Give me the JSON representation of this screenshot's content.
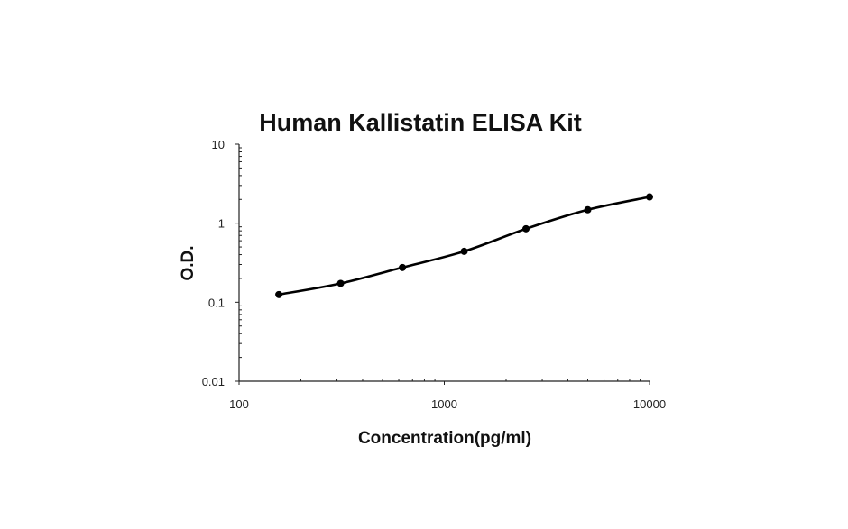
{
  "chart_data": {
    "type": "scatter",
    "title": "Human Kallistatin ELISA Kit",
    "xlabel": "Concentration(pg/ml)",
    "ylabel": "O.D.",
    "x_scale": "log",
    "y_scale": "log",
    "xlim": [
      100,
      10000
    ],
    "ylim": [
      0.01,
      10
    ],
    "x_ticks": [
      100,
      1000,
      10000
    ],
    "x_tick_labels": [
      "100",
      "1000",
      "10000"
    ],
    "y_ticks": [
      0.01,
      0.1,
      1,
      10
    ],
    "y_tick_labels": [
      "0.01",
      "0.1",
      "1",
      "10"
    ],
    "grid": false,
    "legend": "none",
    "series": [
      {
        "x": [
          156.25,
          312.5,
          625,
          1250,
          2500,
          5000,
          10000
        ],
        "y": [
          0.125,
          0.173,
          0.275,
          0.44,
          0.85,
          1.48,
          2.15
        ]
      }
    ],
    "colors": {
      "line": "#000000",
      "marker": "#000000"
    }
  }
}
